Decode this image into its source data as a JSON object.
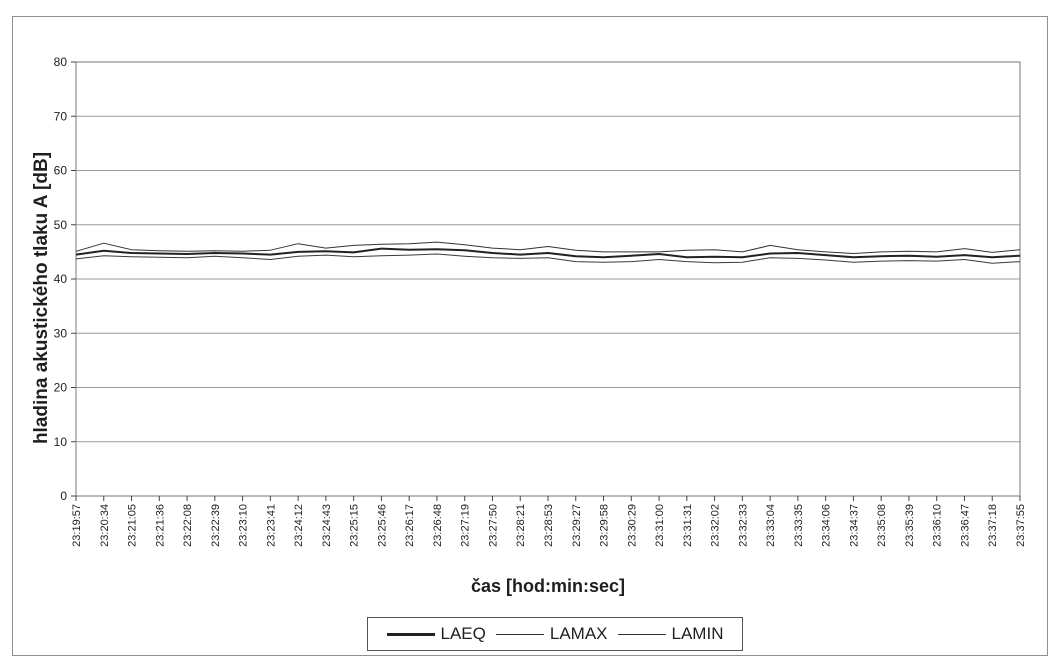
{
  "chart_data": {
    "type": "line",
    "title": "",
    "xlabel": "čas [hod:min:sec]",
    "ylabel": "hladina akustického tlaku A [dB]",
    "ylim": [
      0,
      80
    ],
    "yticks": [
      0,
      10,
      20,
      30,
      40,
      50,
      60,
      70,
      80
    ],
    "grid": true,
    "legend_position": "bottom",
    "categories": [
      "23:19:57",
      "23:20:34",
      "23:21:05",
      "23:21:36",
      "23:22:08",
      "23:22:39",
      "23:23:10",
      "23:23:41",
      "23:24:12",
      "23:24:43",
      "23:25:15",
      "23:25:46",
      "23:26:17",
      "23:26:48",
      "23:27:19",
      "23:27:50",
      "23:28:21",
      "23:28:53",
      "23:29:27",
      "23:29:58",
      "23:30:29",
      "23:31:00",
      "23:31:31",
      "23:32:02",
      "23:32:33",
      "23:33:04",
      "23:33:35",
      "23:34:06",
      "23:34:37",
      "23:35:08",
      "23:35:39",
      "23:36:10",
      "23:36:47",
      "23:37:18",
      "23:37:55"
    ],
    "series": [
      {
        "name": "LAEQ",
        "color": "#222222",
        "values": [
          44.5,
          45.2,
          44.8,
          44.7,
          44.6,
          44.8,
          44.7,
          44.5,
          45.0,
          45.1,
          44.9,
          45.6,
          45.4,
          45.5,
          45.3,
          44.8,
          44.5,
          44.8,
          44.2,
          44.0,
          44.3,
          44.6,
          44.0,
          44.1,
          44.0,
          44.7,
          44.8,
          44.4,
          44.0,
          44.2,
          44.3,
          44.1,
          44.4,
          44.0,
          44.3
        ]
      },
      {
        "name": "LAMAX",
        "color": "#333333",
        "values": [
          45.1,
          46.6,
          45.4,
          45.2,
          45.1,
          45.2,
          45.1,
          45.3,
          46.5,
          45.7,
          46.2,
          46.4,
          46.5,
          46.8,
          46.3,
          45.7,
          45.4,
          46.0,
          45.3,
          45.0,
          45.0,
          45.0,
          45.3,
          45.4,
          45.0,
          46.2,
          45.4,
          45.0,
          44.7,
          45.0,
          45.1,
          45.0,
          45.6,
          44.9,
          45.4
        ]
      },
      {
        "name": "LAMIN",
        "color": "#3a3a3a",
        "values": [
          43.7,
          44.3,
          44.1,
          44.0,
          43.9,
          44.2,
          43.9,
          43.6,
          44.2,
          44.4,
          44.1,
          44.3,
          44.4,
          44.6,
          44.2,
          43.9,
          43.8,
          43.9,
          43.2,
          43.1,
          43.2,
          43.6,
          43.2,
          43.0,
          43.1,
          43.9,
          43.8,
          43.5,
          43.1,
          43.3,
          43.4,
          43.3,
          43.6,
          42.9,
          43.2
        ]
      }
    ]
  }
}
